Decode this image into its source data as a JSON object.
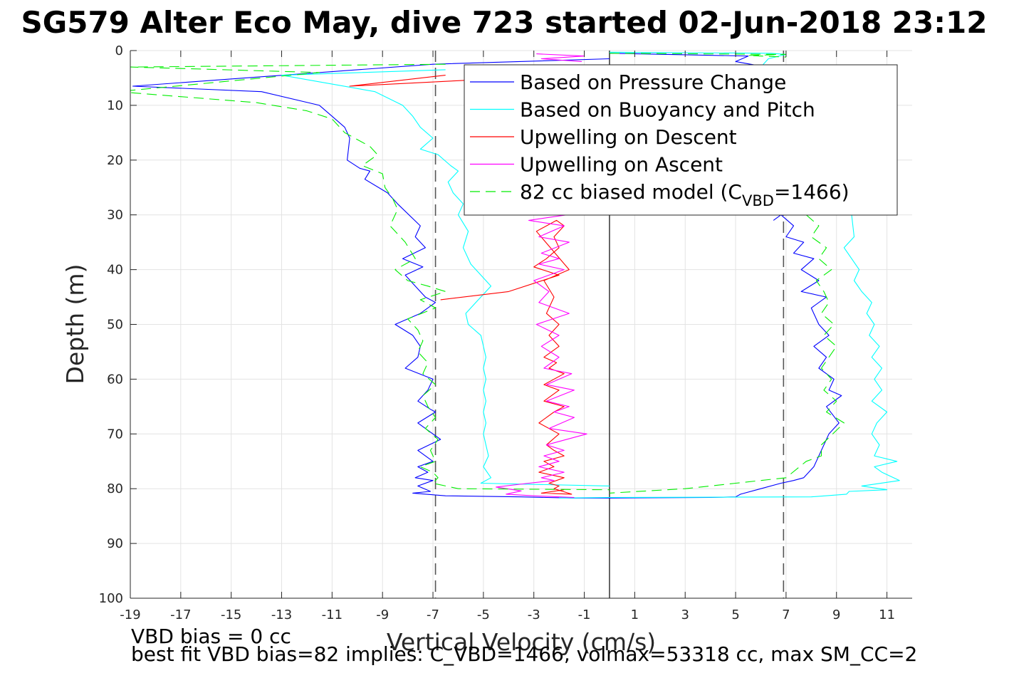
{
  "chart_data": {
    "type": "line",
    "title": "SG579 Alter Eco May, dive 723 started 02-Jun-2018 23:12",
    "xlabel": "Vertical Velocity (cm/s)",
    "ylabel": "Depth (m)",
    "xlim": [
      -19,
      12
    ],
    "ylim": [
      0,
      100
    ],
    "y_reversed": true,
    "grid": true,
    "xticks": [
      -19,
      -17,
      -15,
      -13,
      -11,
      -9,
      -7,
      -5,
      -3,
      -1,
      1,
      3,
      5,
      7,
      9,
      11
    ],
    "yticks": [
      0,
      10,
      20,
      30,
      40,
      50,
      60,
      70,
      80,
      90,
      100
    ],
    "legend_position": "top-right",
    "reference_lines": [
      {
        "orientation": "vertical",
        "x": 0,
        "style": "solid",
        "color": "#000000"
      },
      {
        "orientation": "vertical",
        "x": -6.9,
        "style": "dashed",
        "color": "#555555"
      },
      {
        "orientation": "vertical",
        "x": 6.9,
        "style": "dashed",
        "color": "#555555"
      }
    ],
    "series": [
      {
        "name": "Based on Pressure Change",
        "color": "#0000ff",
        "dash": "solid",
        "segments": [
          {
            "x": [
              0,
              -7,
              -18.9,
              -13.8,
              -11.5,
              -11,
              -10.5,
              -10.3,
              -10.4,
              -9.9,
              -9.5,
              -9.7,
              -8.8,
              -8.4,
              -7.5,
              -7.7,
              -7.3,
              -8.2,
              -7.4,
              -8.1,
              -7.7,
              -7.3,
              -6.9,
              -7.5,
              -8.5,
              -7.8,
              -7.5,
              -7.6,
              -8.1,
              -7.0,
              -7.2,
              -7.6,
              -7.1,
              -6.9,
              -7.6,
              -7.0,
              -6.7,
              -7.6,
              -7.0,
              -7.6,
              -7.2,
              -7.7,
              -7.0,
              -7.6,
              -7.1,
              -7.8,
              -6.5,
              -3.5,
              -1.5,
              0
            ],
            "y": [
              1.5,
              2.5,
              6.5,
              7.5,
              10,
              12,
              14,
              16,
              20,
              21.5,
              22,
              23.5,
              26,
              28,
              32,
              34,
              36,
              38,
              39.5,
              41,
              43,
              45,
              46,
              48,
              50,
              52,
              54,
              56,
              58,
              60,
              62,
              64,
              65.5,
              66,
              68,
              70,
              71,
              73,
              75,
              76,
              77,
              78,
              78.5,
              79.5,
              80.5,
              80.8,
              81.3,
              81.5,
              81.7,
              81.7
            ]
          },
          {
            "x": [
              0,
              5.5,
              5.0,
              6.2,
              6.0,
              0
            ],
            "y": [
              0.5,
              1.0,
              2.0,
              3.0,
              5.0,
              5.0
            ]
          },
          {
            "x": [
              6.5,
              6.8,
              7.3,
              7.0,
              7.7,
              7.3,
              8.1,
              7.6,
              8.3,
              7.6,
              8.6,
              8.0,
              8.3,
              8.7,
              8.1,
              8.6,
              8.3,
              8.9,
              8.7,
              9.2,
              8.6,
              9.1,
              8.7,
              8.4,
              8.1,
              7.7,
              7.3,
              6.8,
              6.0,
              5.2,
              5.0,
              4.0,
              0
            ],
            "y": [
              31,
              30,
              32,
              34,
              35,
              37,
              38,
              40,
              42,
              44,
              45,
              47,
              50,
              52,
              54,
              56,
              58,
              60,
              62,
              63,
              65,
              68,
              70,
              73,
              76,
              78,
              78.5,
              79,
              80,
              81,
              81.5,
              81.6,
              81.7
            ]
          }
        ]
      },
      {
        "name": "Based on Buoyancy and Pitch",
        "color": "#00ffff",
        "dash": "solid",
        "segments": [
          {
            "x": [
              -6.5,
              -13.0,
              -9.3,
              -8.2,
              -7.8,
              -7.5,
              -7.0,
              -7.5,
              -6.8,
              -6.3,
              -6.0,
              -6.4,
              -6.2,
              -5.8,
              -6.0,
              -5.6,
              -5.8,
              -5.5,
              -4.7,
              -5.3,
              -5.7,
              -5.6,
              -5.1,
              -5.0,
              -4.9,
              -5.0,
              -4.9,
              -5.0,
              -4.9,
              -5.0,
              -4.9,
              -5.0,
              -4.9,
              -4.8,
              -5.0,
              -4.7,
              -5.1,
              0
            ],
            "y": [
              3.5,
              4.5,
              7.5,
              10,
              12,
              14,
              16,
              18,
              19,
              21,
              22,
              24,
              26,
              28,
              30,
              33,
              36,
              39,
              43,
              46,
              48,
              50,
              52,
              54,
              56,
              58,
              60,
              62,
              64,
              66,
              68,
              70,
              72,
              74,
              76,
              78,
              79,
              79.5
            ]
          },
          {
            "x": [
              0,
              6.4,
              7.0,
              6.3,
              6.1,
              6.3,
              6.2
            ],
            "y": [
              0.3,
              0.5,
              0.7,
              1.5,
              2.5,
              5,
              7
            ]
          },
          {
            "x": [
              9.6,
              9.7,
              9.3,
              9.6,
              9.9,
              9.7,
              10.0,
              10.4,
              10.2,
              10.5,
              10.3,
              10.7,
              10.4,
              10.8,
              10.5,
              10.8,
              10.4,
              11.0,
              10.6,
              10.4,
              10.7,
              10.5,
              11.4,
              10.5,
              10.8,
              11.5,
              10.0,
              11.0,
              9.5,
              9.4,
              8.0,
              0,
              -2.0
            ],
            "y": [
              30,
              34,
              36,
              38,
              40,
              42,
              44,
              46,
              48,
              50,
              52,
              54,
              56,
              58,
              60,
              62,
              64,
              66,
              68,
              70,
              72,
              74,
              75,
              76,
              77,
              78.5,
              79.5,
              80.2,
              80.5,
              81.0,
              81.5,
              81.6,
              81.7
            ]
          }
        ]
      },
      {
        "name": "Upwelling on Descent",
        "color": "#ff0000",
        "dash": "solid",
        "segments": [
          {
            "x": [
              -6.5,
              -10.3,
              -6.0,
              -4.0
            ],
            "y": [
              4.5,
              6.5,
              5.5,
              5.0
            ]
          },
          {
            "x": [
              -6.7,
              -4.0,
              -2.0,
              -3.0,
              -2.5,
              -2.0,
              -2.2,
              -1.8,
              -2.1,
              -2.9,
              -1.6,
              -2.6,
              -2.2,
              -2.5,
              -2.0,
              -2.4,
              -2.0,
              -2.6,
              -2.1,
              -2.4,
              -1.8,
              -2.6,
              -2.0,
              -2.6,
              -1.8,
              -2.2,
              -2.8,
              -2.0,
              -2.5,
              -2.2,
              -1.8,
              -2.6,
              -2.2,
              -2.8,
              -1.8,
              -2.4,
              -2.0,
              -2.2,
              -1.5,
              -2.7,
              -1.8
            ],
            "y": [
              45.5,
              44,
              41,
              39.5,
              38,
              36,
              34,
              32,
              31,
              33,
              40,
              42,
              45,
              48,
              50,
              52,
              54,
              56,
              57,
              58,
              59,
              61,
              62,
              64,
              65,
              66,
              68,
              70,
              72,
              73,
              74,
              75,
              76,
              77,
              78,
              79,
              79.5,
              80,
              81,
              80.8,
              80.2
            ]
          }
        ]
      },
      {
        "name": "Upwelling on Ascent",
        "color": "#ff00ff",
        "dash": "solid",
        "segments": [
          {
            "x": [
              -2.9,
              -1.0,
              -2.7,
              -1.1
            ],
            "y": [
              0.6,
              1.0,
              1.5,
              2.0
            ]
          },
          {
            "x": [
              -1.7,
              -3.2,
              -1.8,
              -2.8,
              -1.6,
              -2.7,
              -2.0,
              -2.8,
              -1.8,
              -3.0,
              -2.4,
              -2.8,
              -1.6,
              -2.9,
              -2.0,
              -2.7,
              -2.0,
              -2.6,
              -1.5,
              -2.5,
              -1.4,
              -2.5,
              -1.6,
              -2.2,
              -1.4,
              -2.4,
              -0.9,
              -2.5,
              -1.8,
              -2.6,
              -2.0,
              -2.8,
              -1.8,
              -2.7,
              -2.2,
              -3.2,
              -4.5,
              -3.5,
              -4.1,
              -3.0,
              -1.4
            ],
            "y": [
              30,
              31,
              32,
              34,
              35,
              37,
              38,
              39,
              40,
              42,
              44,
              46,
              48,
              50,
              52,
              54,
              56,
              58,
              59,
              61,
              62,
              64,
              65,
              66,
              67,
              69,
              70,
              72,
              73,
              74,
              75,
              76,
              77,
              78,
              78.5,
              79,
              79.7,
              80.4,
              81.0,
              81.3,
              81.6
            ]
          }
        ]
      },
      {
        "name": "82 cc biased model (C_VBD=1466)",
        "legend_label": "82 cc biased model (C",
        "legend_subscript": "VBD",
        "legend_suffix": "=1466)",
        "color": "#00ee00",
        "dash": "dashed",
        "segments": [
          {
            "x": [
              -6.5,
              -19.0,
              -11.5,
              -19.5,
              -14.0,
              -12.0,
              -11.0,
              -10.5,
              -9.5,
              -9.2,
              -9.8,
              -9.0,
              -8.9,
              -8.6,
              -8.4,
              -8.7,
              -8.1,
              -7.7,
              -8.5,
              -8.0,
              -7.2,
              -6.5,
              -7.5,
              -6.9,
              -8.0,
              -7.6,
              -7.4,
              -7.6,
              -7.2,
              -7.4,
              -6.9,
              -7.4,
              -7.2,
              -6.9,
              -7.3,
              -6.8,
              -7.1,
              -6.9,
              -7.5,
              -7.0,
              -6.8,
              -7.0,
              -6.0,
              0
            ],
            "y": [
              2.5,
              3.0,
              4.0,
              7.5,
              9.5,
              11,
              12.5,
              15,
              17.5,
              19,
              21,
              22.5,
              25,
              27,
              29,
              32,
              35,
              38,
              40,
              42,
              43,
              44,
              45.5,
              47,
              49,
              51,
              53,
              55,
              57,
              59,
              61,
              63,
              65,
              67,
              69,
              71,
              73,
              75,
              76,
              77,
              78,
              79,
              80,
              80.2
            ]
          },
          {
            "x": [
              0,
              7.0,
              5.5,
              7.0
            ],
            "y": [
              0.5,
              0.7,
              0.9,
              1.2
            ]
          },
          {
            "x": [
              7.8,
              8.3,
              8.0,
              8.6,
              8.3,
              8.8,
              8.2,
              8.5,
              8.7,
              8.4,
              8.9,
              8.5,
              9.0,
              8.7,
              8.4,
              8.8,
              8.5,
              9.0,
              8.6,
              9.3,
              8.4,
              8.4,
              7.8,
              7.0,
              5.0,
              3.0,
              0
            ],
            "y": [
              30,
              32,
              34,
              36,
              38,
              40,
              42,
              44,
              46,
              48,
              50,
              52,
              54,
              56,
              58,
              60,
              62,
              64,
              66,
              68,
              72,
              74,
              75,
              78,
              79,
              80,
              80.8
            ]
          }
        ]
      }
    ]
  },
  "footer": {
    "line1": "VBD bias = 0 cc",
    "line2": "best fit VBD bias=82 implies: C_VBD=1466, volmax=53318 cc, max SM_CC=2"
  }
}
